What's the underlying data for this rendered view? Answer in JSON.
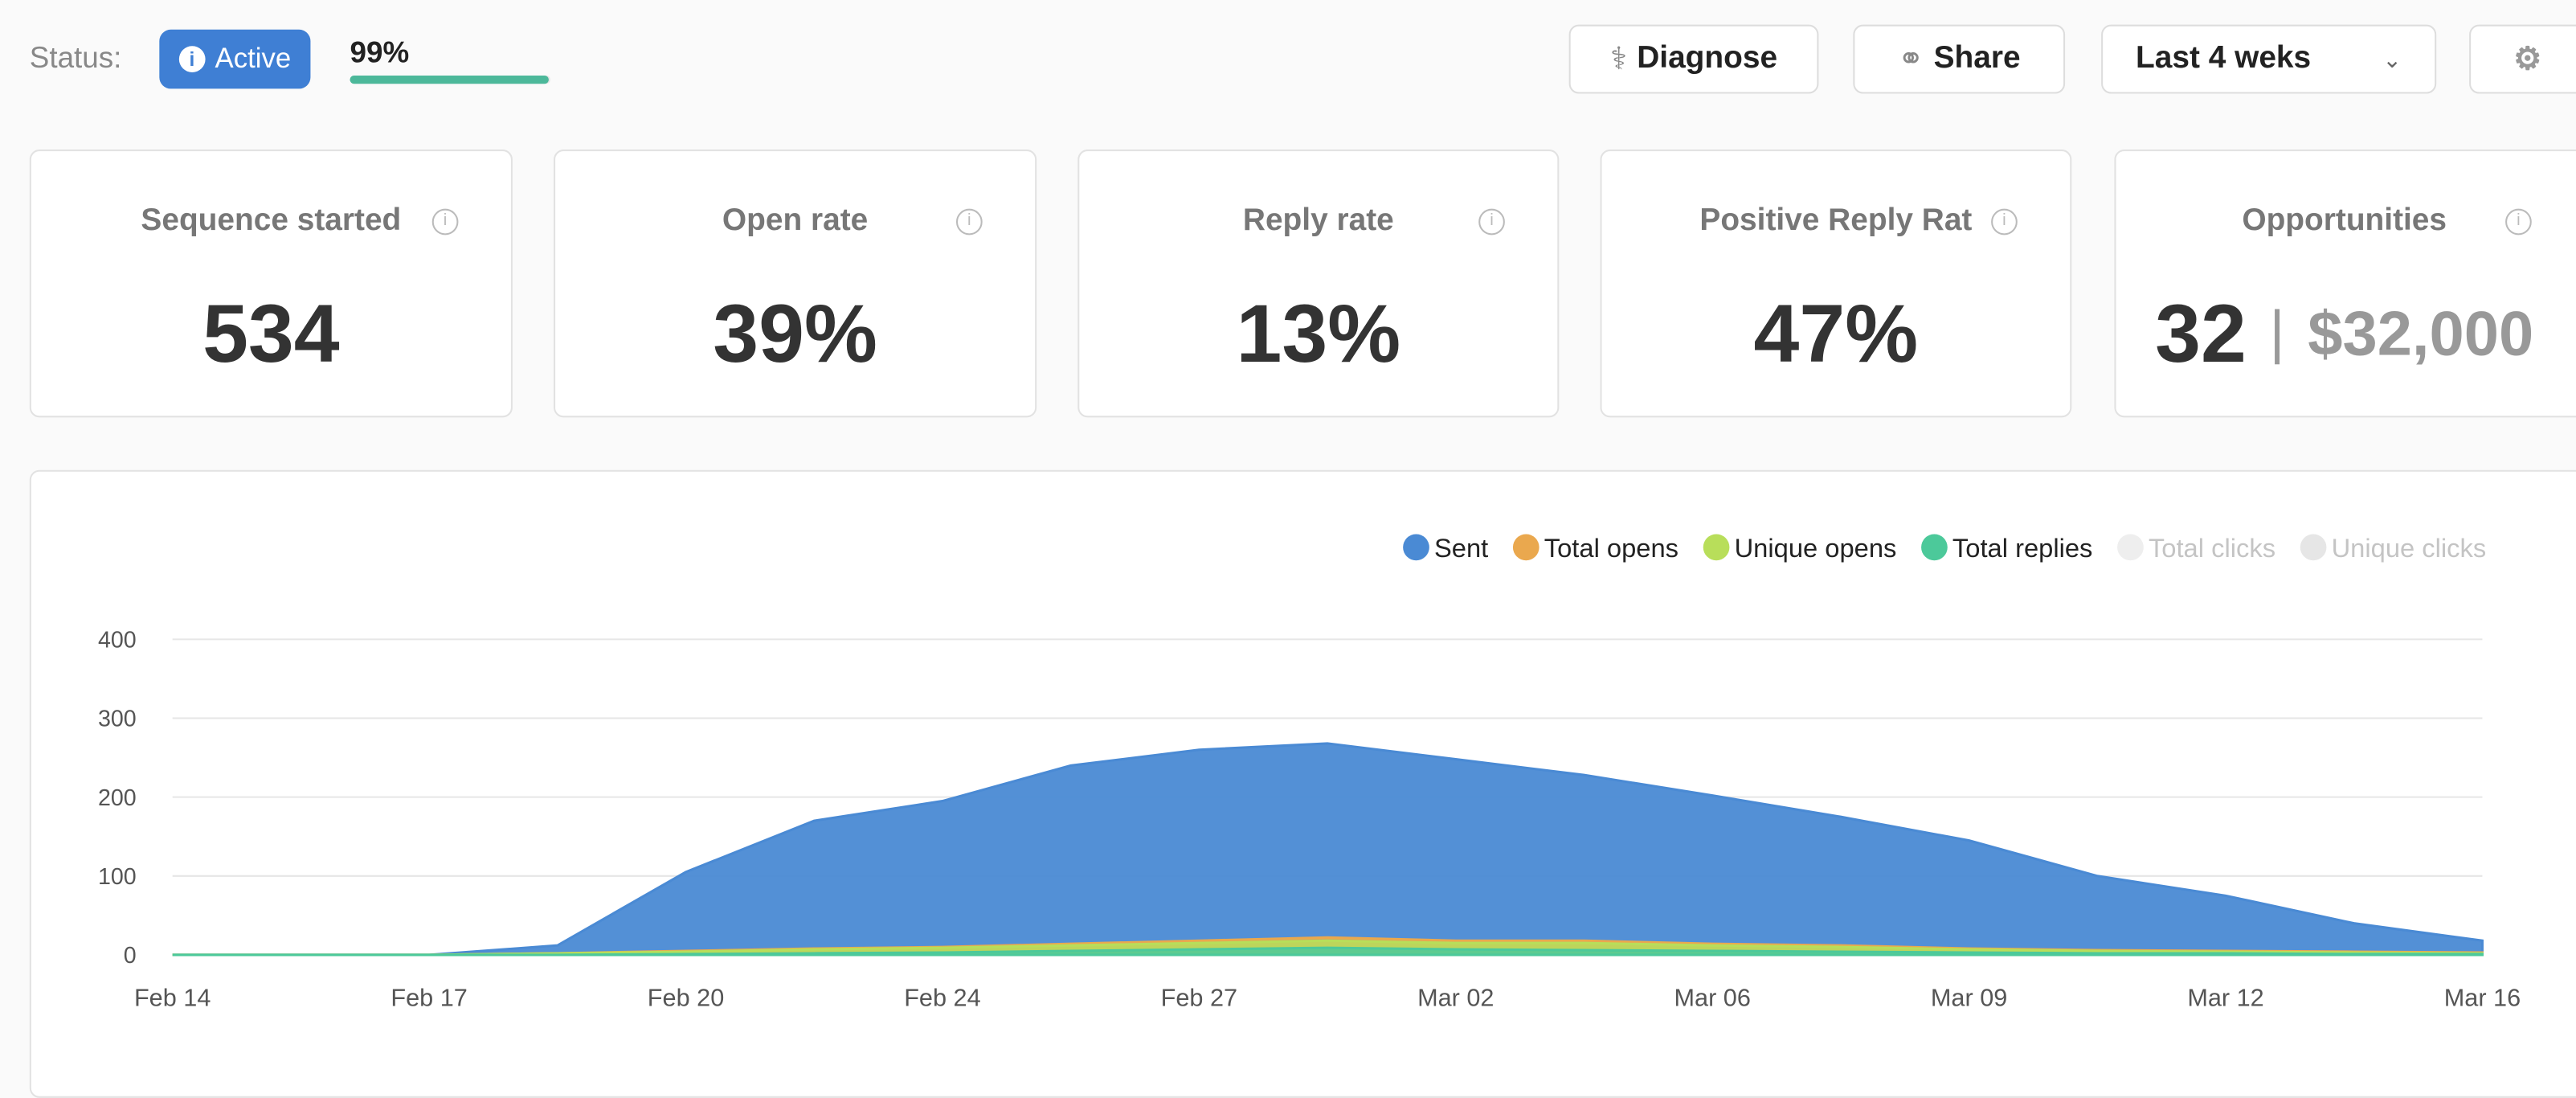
{
  "header": {
    "status_label": "Status:",
    "status": "Active",
    "progress": {
      "value": 99,
      "label": "99%"
    },
    "buttons": [
      "Diagnose",
      "Share"
    ],
    "range": "Last 4 weks"
  },
  "cards": [
    {
      "title": "Sequence started",
      "value": "534"
    },
    {
      "title": "Open rate",
      "value": "39%"
    },
    {
      "title": "Reply rate",
      "value": "13%"
    },
    {
      "title": "Positive Reply Rat",
      "value": "47%"
    },
    {
      "title": "Opportunities",
      "value": "32",
      "amount": "$32,000"
    }
  ],
  "chart_data": {
    "type": "area",
    "categories": [
      "Feb 14",
      null,
      "Feb 17",
      null,
      "Feb 20",
      null,
      "Feb 24",
      null,
      "Feb 27",
      null,
      "Mar 02",
      null,
      "Mar 06",
      null,
      "Mar 09",
      null,
      "Mar 12",
      null,
      "Mar 16"
    ],
    "ylim": [
      0,
      400
    ],
    "yticks": [
      0,
      100,
      200,
      300,
      400
    ],
    "grid": true,
    "series": [
      {
        "name": "Sent",
        "color": "#4a8ad4",
        "values": [
          0,
          0,
          0,
          12,
          105,
          170,
          195,
          240,
          260,
          268,
          248,
          228,
          202,
          175,
          145,
          100,
          75,
          40,
          18
        ]
      },
      {
        "name": "Total opens",
        "color": "#eaa84e",
        "values": [
          0,
          0,
          0,
          2,
          5,
          8,
          10,
          14,
          18,
          22,
          18,
          18,
          14,
          12,
          8,
          6,
          5,
          4,
          3
        ]
      },
      {
        "name": "Unique opens",
        "color": "#b8de5a",
        "values": [
          0,
          0,
          0,
          2,
          4,
          7,
          9,
          12,
          15,
          18,
          15,
          15,
          12,
          10,
          7,
          5,
          4,
          3,
          2
        ]
      },
      {
        "name": "Total replies",
        "color": "#4cc99a",
        "values": [
          0,
          0,
          0,
          0,
          1,
          2,
          3,
          5,
          7,
          9,
          7,
          6,
          5,
          4,
          3,
          2,
          2,
          1,
          1
        ]
      },
      {
        "name": "Total clicks",
        "color": "#eeeeee",
        "visible": false
      },
      {
        "name": "Unique clicks",
        "color": "#e6e6e6",
        "visible": false
      }
    ]
  }
}
